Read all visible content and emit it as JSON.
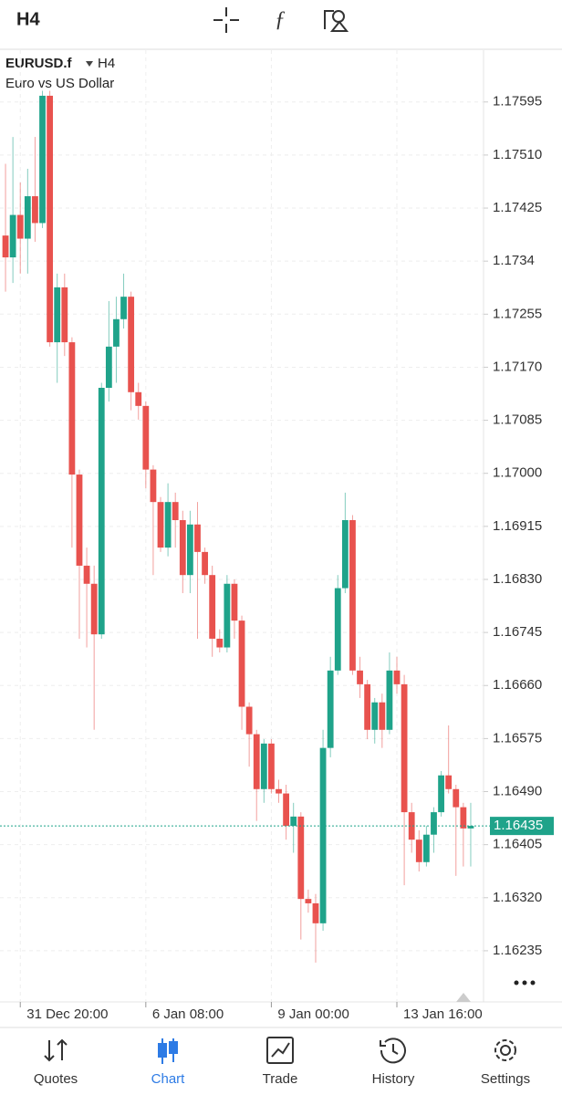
{
  "header": {
    "title": "H4"
  },
  "chart_data": {
    "type": "candlestick",
    "symbol": "EURUSD.f",
    "timeframe": "H4",
    "description": "Euro vs US Dollar",
    "categories": [
      null,
      null,
      "31 Dec 20:00",
      null,
      null,
      null,
      null,
      null,
      null,
      null,
      null,
      null,
      null,
      null,
      null,
      null,
      null,
      null,
      null,
      "6 Jan 08:00",
      null,
      null,
      null,
      null,
      null,
      null,
      null,
      null,
      null,
      null,
      null,
      null,
      null,
      null,
      null,
      null,
      "9 Jan 00:00",
      null,
      null,
      null,
      null,
      null,
      null,
      null,
      null,
      null,
      null,
      null,
      null,
      null,
      null,
      null,
      null,
      "13 Jan 16:00",
      null,
      null,
      null,
      null,
      null,
      null,
      null,
      null,
      null,
      null
    ],
    "open": [
      1.17381,
      1.17346,
      1.17414,
      1.17376,
      1.17444,
      1.17401,
      1.17605,
      1.1721,
      1.17298,
      1.1721,
      1.16998,
      1.16852,
      1.16823,
      1.16742,
      1.17137,
      1.17203,
      1.17247,
      1.17283,
      1.1713,
      1.17108,
      1.17006,
      1.16954,
      1.16881,
      1.16954,
      1.16925,
      1.16837,
      1.16918,
      1.16874,
      1.16837,
      1.16735,
      1.16721,
      1.16823,
      1.16764,
      1.16626,
      1.16582,
      1.16494,
      1.16567,
      1.16494,
      1.16487,
      1.16435,
      1.1645,
      1.16318,
      1.16311,
      1.16279,
      1.1656,
      1.16684,
      1.16816,
      1.16925,
      1.16684,
      1.16662,
      1.16589,
      1.16633,
      1.16589,
      1.16684,
      1.16662,
      1.16457,
      1.16413,
      1.16377,
      1.16421,
      1.16457,
      1.16516,
      1.16494,
      1.16465,
      1.16431
    ],
    "high": [
      1.17496,
      1.17539,
      1.17466,
      1.17488,
      1.17539,
      1.17613,
      1.17613,
      1.1732,
      1.1732,
      1.17218,
      1.17006,
      1.16881,
      1.16852,
      1.17145,
      1.17276,
      1.17283,
      1.1732,
      1.17291,
      1.17145,
      1.17115,
      1.17013,
      1.16962,
      1.16984,
      1.16969,
      1.1694,
      1.1694,
      1.16954,
      1.16881,
      1.16852,
      1.1675,
      1.16837,
      1.1683,
      1.16772,
      1.16633,
      1.16589,
      1.16574,
      1.16574,
      1.16509,
      1.16501,
      1.16472,
      1.16457,
      1.16333,
      1.16326,
      1.16589,
      1.16706,
      1.16837,
      1.16969,
      1.16933,
      1.16706,
      1.16669,
      1.1664,
      1.16647,
      1.16713,
      1.16706,
      1.16677,
      1.16472,
      1.16428,
      1.16435,
      1.16465,
      1.16523,
      1.16596,
      1.16501,
      1.16472,
      1.16472
    ],
    "low": [
      1.17291,
      1.17305,
      1.1732,
      1.1732,
      1.17371,
      1.17393,
      1.17203,
      1.17145,
      1.17188,
      1.16881,
      1.16735,
      1.16721,
      1.16589,
      1.16735,
      1.17115,
      1.17145,
      1.17232,
      1.17101,
      1.17086,
      1.16976,
      1.16837,
      1.16874,
      1.16867,
      1.16881,
      1.16808,
      1.16808,
      1.16735,
      1.16823,
      1.16706,
      1.16713,
      1.16713,
      1.16735,
      1.16589,
      1.1653,
      1.16443,
      1.16472,
      1.16487,
      1.16472,
      1.16413,
      1.16392,
      1.16253,
      1.16296,
      1.16216,
      1.16267,
      1.16545,
      1.16677,
      1.16808,
      1.16677,
      1.1664,
      1.16574,
      1.16567,
      1.1656,
      1.16582,
      1.16647,
      1.1634,
      1.16392,
      1.16362,
      1.1637,
      1.16392,
      1.1645,
      1.16487,
      1.16355,
      1.1637,
      1.1637
    ],
    "close": [
      1.17346,
      1.17414,
      1.17376,
      1.17444,
      1.17401,
      1.17605,
      1.1721,
      1.17298,
      1.1721,
      1.16998,
      1.16852,
      1.16823,
      1.16742,
      1.17137,
      1.17203,
      1.17247,
      1.17283,
      1.1713,
      1.17108,
      1.17006,
      1.16954,
      1.16881,
      1.16954,
      1.16925,
      1.16837,
      1.16918,
      1.16874,
      1.16837,
      1.16735,
      1.16721,
      1.16823,
      1.16764,
      1.16626,
      1.16582,
      1.16494,
      1.16567,
      1.16494,
      1.16487,
      1.16435,
      1.1645,
      1.16318,
      1.16311,
      1.16279,
      1.1656,
      1.16684,
      1.16816,
      1.16925,
      1.16684,
      1.16662,
      1.16589,
      1.16633,
      1.16589,
      1.16684,
      1.16662,
      1.16457,
      1.16413,
      1.16377,
      1.16421,
      1.16457,
      1.16516,
      1.16494,
      1.16465,
      1.16431,
      1.16435
    ],
    "up_color": "#1fa38a",
    "down_color": "#e8524e",
    "ylim": [
      1.16153,
      1.17678
    ],
    "yticks": [
      1.17595,
      {
        "value": 1.1751,
        "label": "1.17510"
      },
      1.17425,
      1.1734,
      1.17255,
      {
        "value": 1.1717,
        "label": "1.17170"
      },
      1.17085,
      {
        "value": 1.17,
        "label": "1.17000"
      },
      1.16915,
      {
        "value": 1.1683,
        "label": "1.16830"
      },
      1.16745,
      {
        "value": 1.1666,
        "label": "1.16660"
      },
      1.16575,
      {
        "value": 1.1649,
        "label": "1.16490"
      },
      1.16405,
      {
        "value": 1.1632,
        "label": "1.16320"
      },
      1.16235
    ],
    "last_price": 1.16435,
    "grid": true
  },
  "nav": {
    "items": [
      "Quotes",
      "Chart",
      "Trade",
      "History",
      "Settings"
    ],
    "active": 1
  }
}
